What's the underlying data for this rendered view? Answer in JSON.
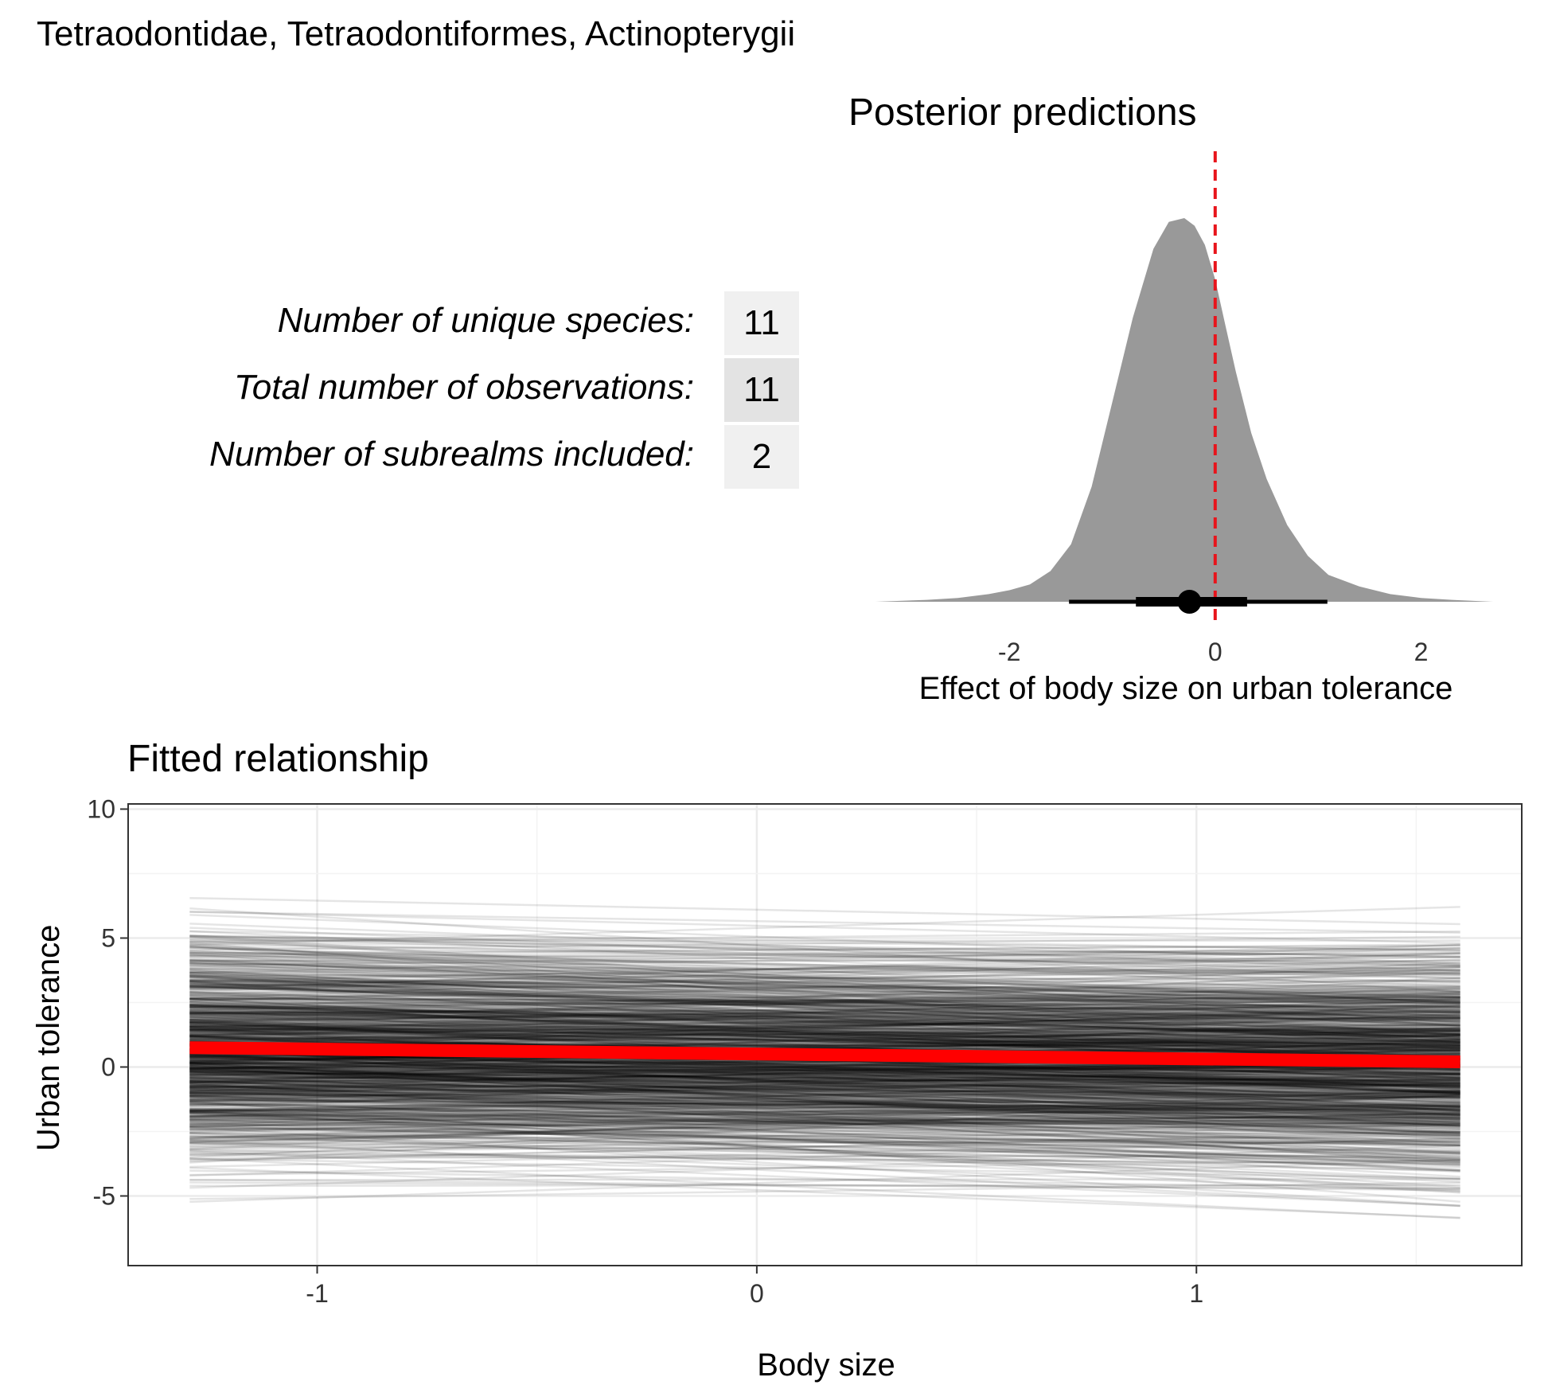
{
  "page_title": "Tetraodontidae, Tetraodontiformes, Actinopterygii",
  "stats": [
    {
      "label": "Number of unique species:",
      "value": "11"
    },
    {
      "label": "Total number of observations:",
      "value": "11"
    },
    {
      "label": "Number of subrealms included:",
      "value": "2"
    }
  ],
  "posterior": {
    "title": "Posterior predictions",
    "xlabel": "Effect of body size on urban tolerance"
  },
  "fitted": {
    "title": "Fitted relationship",
    "xlabel": "Body size",
    "ylabel": "Urban tolerance"
  },
  "chart_data": [
    {
      "type": "area",
      "title": "Posterior predictions",
      "xlabel": "Effect of body size on urban tolerance",
      "ylabel": "",
      "xlim": [
        -3.3,
        2.7
      ],
      "x_ticks": [
        -2,
        0,
        2
      ],
      "x": [
        -3.3,
        -2.8,
        -2.5,
        -2.2,
        -2.0,
        -1.8,
        -1.6,
        -1.4,
        -1.2,
        -1.0,
        -0.8,
        -0.6,
        -0.45,
        -0.3,
        -0.2,
        -0.1,
        0.0,
        0.1,
        0.2,
        0.35,
        0.5,
        0.7,
        0.9,
        1.1,
        1.4,
        1.7,
        2.0,
        2.3,
        2.7
      ],
      "density": [
        0.0,
        0.005,
        0.01,
        0.02,
        0.03,
        0.045,
        0.08,
        0.15,
        0.3,
        0.52,
        0.74,
        0.92,
        0.99,
        1.0,
        0.98,
        0.93,
        0.84,
        0.72,
        0.6,
        0.44,
        0.32,
        0.2,
        0.12,
        0.07,
        0.04,
        0.02,
        0.01,
        0.005,
        0.0
      ],
      "point_estimate": -0.25,
      "interval_66": [
        -0.77,
        0.31
      ],
      "interval_95": [
        -1.42,
        1.09
      ],
      "reference_line_x": 0,
      "reference_color": "#e8141b",
      "fill_color": "#999999"
    },
    {
      "type": "line",
      "title": "Fitted relationship",
      "xlabel": "Body size",
      "ylabel": "Urban tolerance",
      "xlim": [
        -1.43,
        1.74
      ],
      "ylim": [
        -7.7,
        10.2
      ],
      "x_ticks": [
        -1,
        0,
        1
      ],
      "y_ticks": [
        -5,
        0,
        5,
        10
      ],
      "x_range": [
        -1.29,
        1.6
      ],
      "posterior_draws": 1000,
      "draw_color": "#000000",
      "mean_line": {
        "x": [
          -1.29,
          1.6
        ],
        "y": [
          0.75,
          0.2
        ]
      },
      "mean_color": "#ff0000",
      "grid": true
    }
  ]
}
